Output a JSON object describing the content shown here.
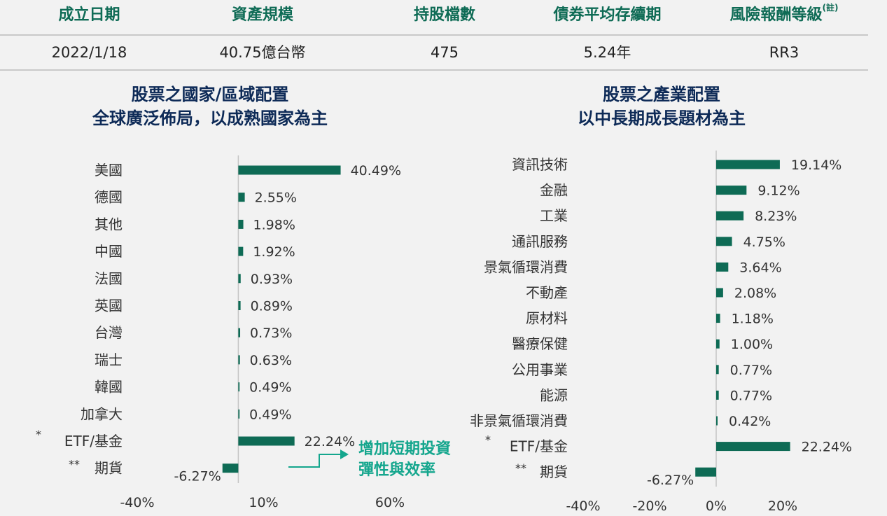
{
  "summary": {
    "headers": [
      "成立日期",
      "資產規模",
      "持股檔數",
      "債券平均存續期",
      "風險報酬等級"
    ],
    "risk_note_mark": "(註)",
    "values": [
      "2022/1/18",
      "40.75億台幣",
      "475",
      "5.24年",
      "RR3"
    ]
  },
  "callout": {
    "lines": [
      "增加短期投資",
      "彈性與效率"
    ]
  },
  "colors": {
    "bar": "#0e6b55",
    "header_text": "#0e6b55",
    "title_text": "#0d2a57",
    "callout": "#14a68d"
  },
  "chart_data": [
    {
      "type": "bar",
      "orientation": "horizontal",
      "title": "股票之國家/區域配置",
      "subtitle": "全球廣泛佈局，以成熟國家為主",
      "categories": [
        "美國",
        "德國",
        "其他",
        "中國",
        "法國",
        "英國",
        "台灣",
        "瑞士",
        "韓國",
        "加拿大",
        "ETF/基金",
        "期貨"
      ],
      "category_marks": [
        "",
        "",
        "",
        "",
        "",
        "",
        "",
        "",
        "",
        "",
        "*",
        "**"
      ],
      "values": [
        40.49,
        2.55,
        1.98,
        1.92,
        0.93,
        0.89,
        0.73,
        0.63,
        0.49,
        0.49,
        22.24,
        -6.27
      ],
      "value_labels": [
        "40.49%",
        "2.55%",
        "1.98%",
        "1.92%",
        "0.93%",
        "0.89%",
        "0.73%",
        "0.63%",
        "0.49%",
        "0.49%",
        "22.24%",
        "-6.27%"
      ],
      "x_ticks": [
        "-40%",
        "10%",
        "60%"
      ],
      "x_tick_values": [
        -40,
        10,
        60
      ],
      "xlim": [
        -40,
        60
      ],
      "grid": false,
      "legend": "none"
    },
    {
      "type": "bar",
      "orientation": "horizontal",
      "title": "股票之產業配置",
      "subtitle": "以中長期成長題材為主",
      "categories": [
        "資訊技術",
        "金融",
        "工業",
        "通訊服務",
        "景氣循環消費",
        "不動產",
        "原材料",
        "醫療保健",
        "公用事業",
        "能源",
        "非景氣循環消費",
        "ETF/基金",
        "期貨"
      ],
      "category_marks": [
        "",
        "",
        "",
        "",
        "",
        "",
        "",
        "",
        "",
        "",
        "",
        "*",
        "**"
      ],
      "values": [
        19.14,
        9.12,
        8.23,
        4.75,
        3.64,
        2.08,
        1.18,
        1.0,
        0.77,
        0.77,
        0.42,
        22.24,
        -6.27
      ],
      "value_labels": [
        "19.14%",
        "9.12%",
        "8.23%",
        "4.75%",
        "3.64%",
        "2.08%",
        "1.18%",
        "1.00%",
        "0.77%",
        "0.77%",
        "0.42%",
        "22.24%",
        "-6.27%"
      ],
      "x_ticks": [
        "-40%",
        "-20%",
        "0%",
        "20%"
      ],
      "x_tick_values": [
        -40,
        -20,
        0,
        20
      ],
      "xlim": [
        -40,
        20
      ],
      "grid": false,
      "legend": "none"
    }
  ]
}
